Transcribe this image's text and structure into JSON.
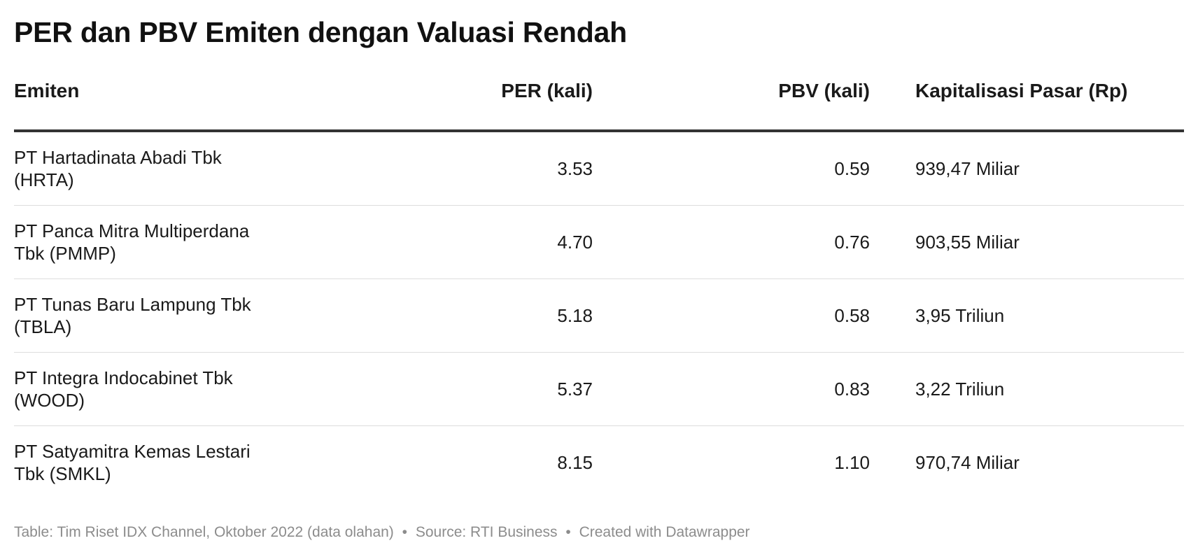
{
  "title": "PER dan PBV Emiten dengan Valuasi Rendah",
  "chart_data": {
    "type": "table",
    "columns": [
      "Emiten",
      "PER (kali)",
      "PBV (kali)",
      "Kapitalisasi Pasar (Rp)"
    ],
    "rows": [
      {
        "emiten": "PT Hartadinata Abadi Tbk (HRTA)",
        "per": "3.53",
        "pbv": "0.59",
        "cap": "939,47 Miliar"
      },
      {
        "emiten": "PT Panca Mitra Multiperdana Tbk (PMMP)",
        "per": "4.70",
        "pbv": "0.76",
        "cap": "903,55 Miliar"
      },
      {
        "emiten": "PT Tunas Baru Lampung Tbk (TBLA)",
        "per": "5.18",
        "pbv": "0.58",
        "cap": "3,95 Triliun"
      },
      {
        "emiten": "PT Integra Indocabinet Tbk (WOOD)",
        "per": "5.37",
        "pbv": "0.83",
        "cap": "3,22 Triliun"
      },
      {
        "emiten": "PT Satyamitra Kemas Lestari Tbk (SMKL)",
        "per": "8.15",
        "pbv": "1.10",
        "cap": "970,74 Miliar"
      }
    ]
  },
  "footer": {
    "table_note": "Table: Tim Riset IDX Channel, Oktober 2022 (data olahan)",
    "separator": "•",
    "source": "Source: RTI Business",
    "credit": "Created with Datawrapper"
  }
}
